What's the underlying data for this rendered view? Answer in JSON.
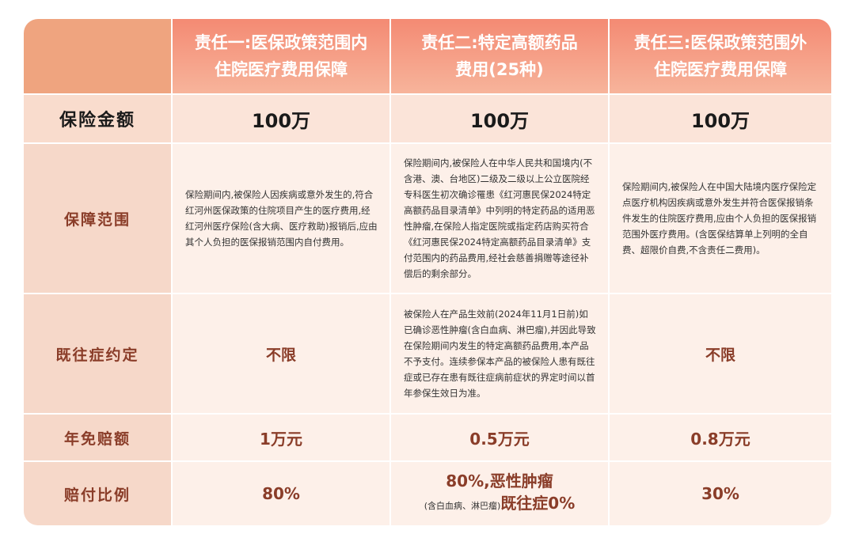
{
  "headers": [
    {
      "line1": "责任一:医保政策范围内",
      "line2": "住院医疗费用保障"
    },
    {
      "line1": "责任二:特定高额药品",
      "line2": "费用(25种)"
    },
    {
      "line1": "责任三:医保政策范围外",
      "line2": "住院医疗费用保障"
    }
  ],
  "rows": {
    "amount": {
      "label": "保险金额",
      "values": [
        "100万",
        "100万",
        "100万"
      ]
    },
    "scope": {
      "label": "保障范围",
      "values": [
        "保险期间内,被保险人因疾病或意外发生的,符合红河州医保政策的住院项目产生的医疗费用,经红河州医疗保险(含大病、医疗救助)报销后,应由其个人负担的医保报销范围内自付费用。",
        "保险期间内,被保险人在中华人民共和国境内(不含港、澳、台地区)二级及二级以上公立医院经专科医生初次确诊罹患《红河惠民保2024特定高额药品目录清单》中列明的特定药品的适用恶性肿瘤,在保险人指定医院或指定药店购买符合《红河惠民保2024特定高额药品目录清单》支付范围内的药品费用,经社会慈善捐赠等途径补偿后的剩余部分。",
        "保险期间内,被保险人在中国大陆境内医疗保险定点医疗机构因疾病或意外发生并符合医保报销条件发生的住院医疗费用,应由个人负担的医保报销范围外医疗费用。(含医保结算单上列明的全自费、超限价自费,不含责任二费用)。"
      ]
    },
    "preexisting": {
      "label": "既往症约定",
      "values": [
        "不限",
        "被保险人在产品生效前(2024年11月1日前)如已确诊恶性肿瘤(含白血病、淋巴瘤),并因此导致在保险期间内发生的特定高额药品费用,本产品不予支付。连续参保本产品的被保险人患有既往症或已存在患有既往症病前症状的界定时间以首年参保生效日为准。",
        "不限"
      ]
    },
    "deductible": {
      "label": "年免赔额",
      "values": [
        "1万元",
        "0.5万元",
        "0.8万元"
      ]
    },
    "ratio": {
      "label": "赔付比例",
      "col1": "80%",
      "col2_main": "80%,恶性肿瘤",
      "col2_small": "(含白血病、淋巴瘤)",
      "col2_bold": "既往症0%",
      "col3": "30%"
    }
  }
}
